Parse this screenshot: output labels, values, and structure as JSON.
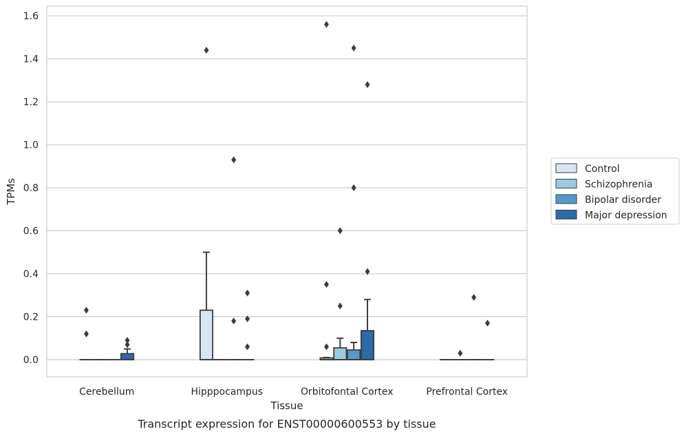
{
  "chart_data": {
    "type": "box",
    "caption": "Transcript expression for ENST00000600553 by tissue",
    "xlabel": "Tissue",
    "ylabel": "TPMs",
    "ylim": [
      -0.08,
      1.645
    ],
    "yticks": [
      0.0,
      0.2,
      0.4,
      0.6,
      0.8,
      1.0,
      1.2,
      1.4,
      1.6
    ],
    "ytick_labels": [
      "0.0",
      "0.2",
      "0.4",
      "0.6",
      "0.8",
      "1.0",
      "1.2",
      "1.4",
      "1.6"
    ],
    "grid": "horizontal",
    "legend_position": "right",
    "categories": [
      "Cerebellum",
      "Hipppocampus",
      "Orbitofontal Cortex",
      "Prefrontal Cortex"
    ],
    "series": [
      {
        "name": "Control",
        "color": "#d6e6f4",
        "boxes": [
          {
            "q1": 0,
            "median": 0,
            "q3": 0,
            "whisker_low": 0,
            "whisker_high": 0,
            "outliers": [
              0.12,
              0.23
            ]
          },
          {
            "q1": 0,
            "median": 0,
            "q3": 0.23,
            "whisker_low": 0,
            "whisker_high": 0.5,
            "outliers": [
              1.44
            ]
          },
          {
            "q1": 0,
            "median": 0,
            "q3": 0.008,
            "whisker_low": 0,
            "whisker_high": 0.01,
            "outliers": [
              0.06,
              0.35,
              1.56
            ]
          },
          {
            "q1": 0,
            "median": 0,
            "q3": 0,
            "whisker_low": 0,
            "whisker_high": 0,
            "outliers": []
          }
        ]
      },
      {
        "name": "Schizophrenia",
        "color": "#9dc9e1",
        "boxes": [
          {
            "q1": 0,
            "median": 0,
            "q3": 0,
            "whisker_low": 0,
            "whisker_high": 0,
            "outliers": []
          },
          {
            "q1": 0,
            "median": 0,
            "q3": 0,
            "whisker_low": 0,
            "whisker_high": 0,
            "outliers": []
          },
          {
            "q1": 0,
            "median": 0,
            "q3": 0.055,
            "whisker_low": 0,
            "whisker_high": 0.1,
            "outliers": [
              0.25,
              0.6
            ]
          },
          {
            "q1": 0,
            "median": 0,
            "q3": 0,
            "whisker_low": 0,
            "whisker_high": 0,
            "outliers": [
              0.03
            ]
          }
        ]
      },
      {
        "name": "Bipolar disorder",
        "color": "#5599c8",
        "boxes": [
          {
            "q1": 0,
            "median": 0,
            "q3": 0,
            "whisker_low": 0,
            "whisker_high": 0,
            "outliers": []
          },
          {
            "q1": 0,
            "median": 0,
            "q3": 0,
            "whisker_low": 0,
            "whisker_high": 0,
            "outliers": [
              0.18,
              0.93
            ]
          },
          {
            "q1": 0,
            "median": 0,
            "q3": 0.045,
            "whisker_low": 0,
            "whisker_high": 0.08,
            "outliers": [
              0.8,
              1.45
            ]
          },
          {
            "q1": 0,
            "median": 0,
            "q3": 0,
            "whisker_low": 0,
            "whisker_high": 0,
            "outliers": [
              0.29
            ]
          }
        ]
      },
      {
        "name": "Major depression",
        "color": "#2b6ba8",
        "boxes": [
          {
            "q1": 0,
            "median": 0,
            "q3": 0.028,
            "whisker_low": 0,
            "whisker_high": 0.05,
            "outliers": [
              0.07,
              0.09
            ]
          },
          {
            "q1": 0,
            "median": 0,
            "q3": 0,
            "whisker_low": 0,
            "whisker_high": 0,
            "outliers": [
              0.06,
              0.19,
              0.31
            ]
          },
          {
            "q1": 0,
            "median": 0,
            "q3": 0.135,
            "whisker_low": 0,
            "whisker_high": 0.28,
            "outliers": [
              0.41,
              1.28
            ]
          },
          {
            "q1": 0,
            "median": 0,
            "q3": 0,
            "whisker_low": 0,
            "whisker_high": 0,
            "outliers": [
              0.17
            ]
          }
        ]
      }
    ]
  }
}
